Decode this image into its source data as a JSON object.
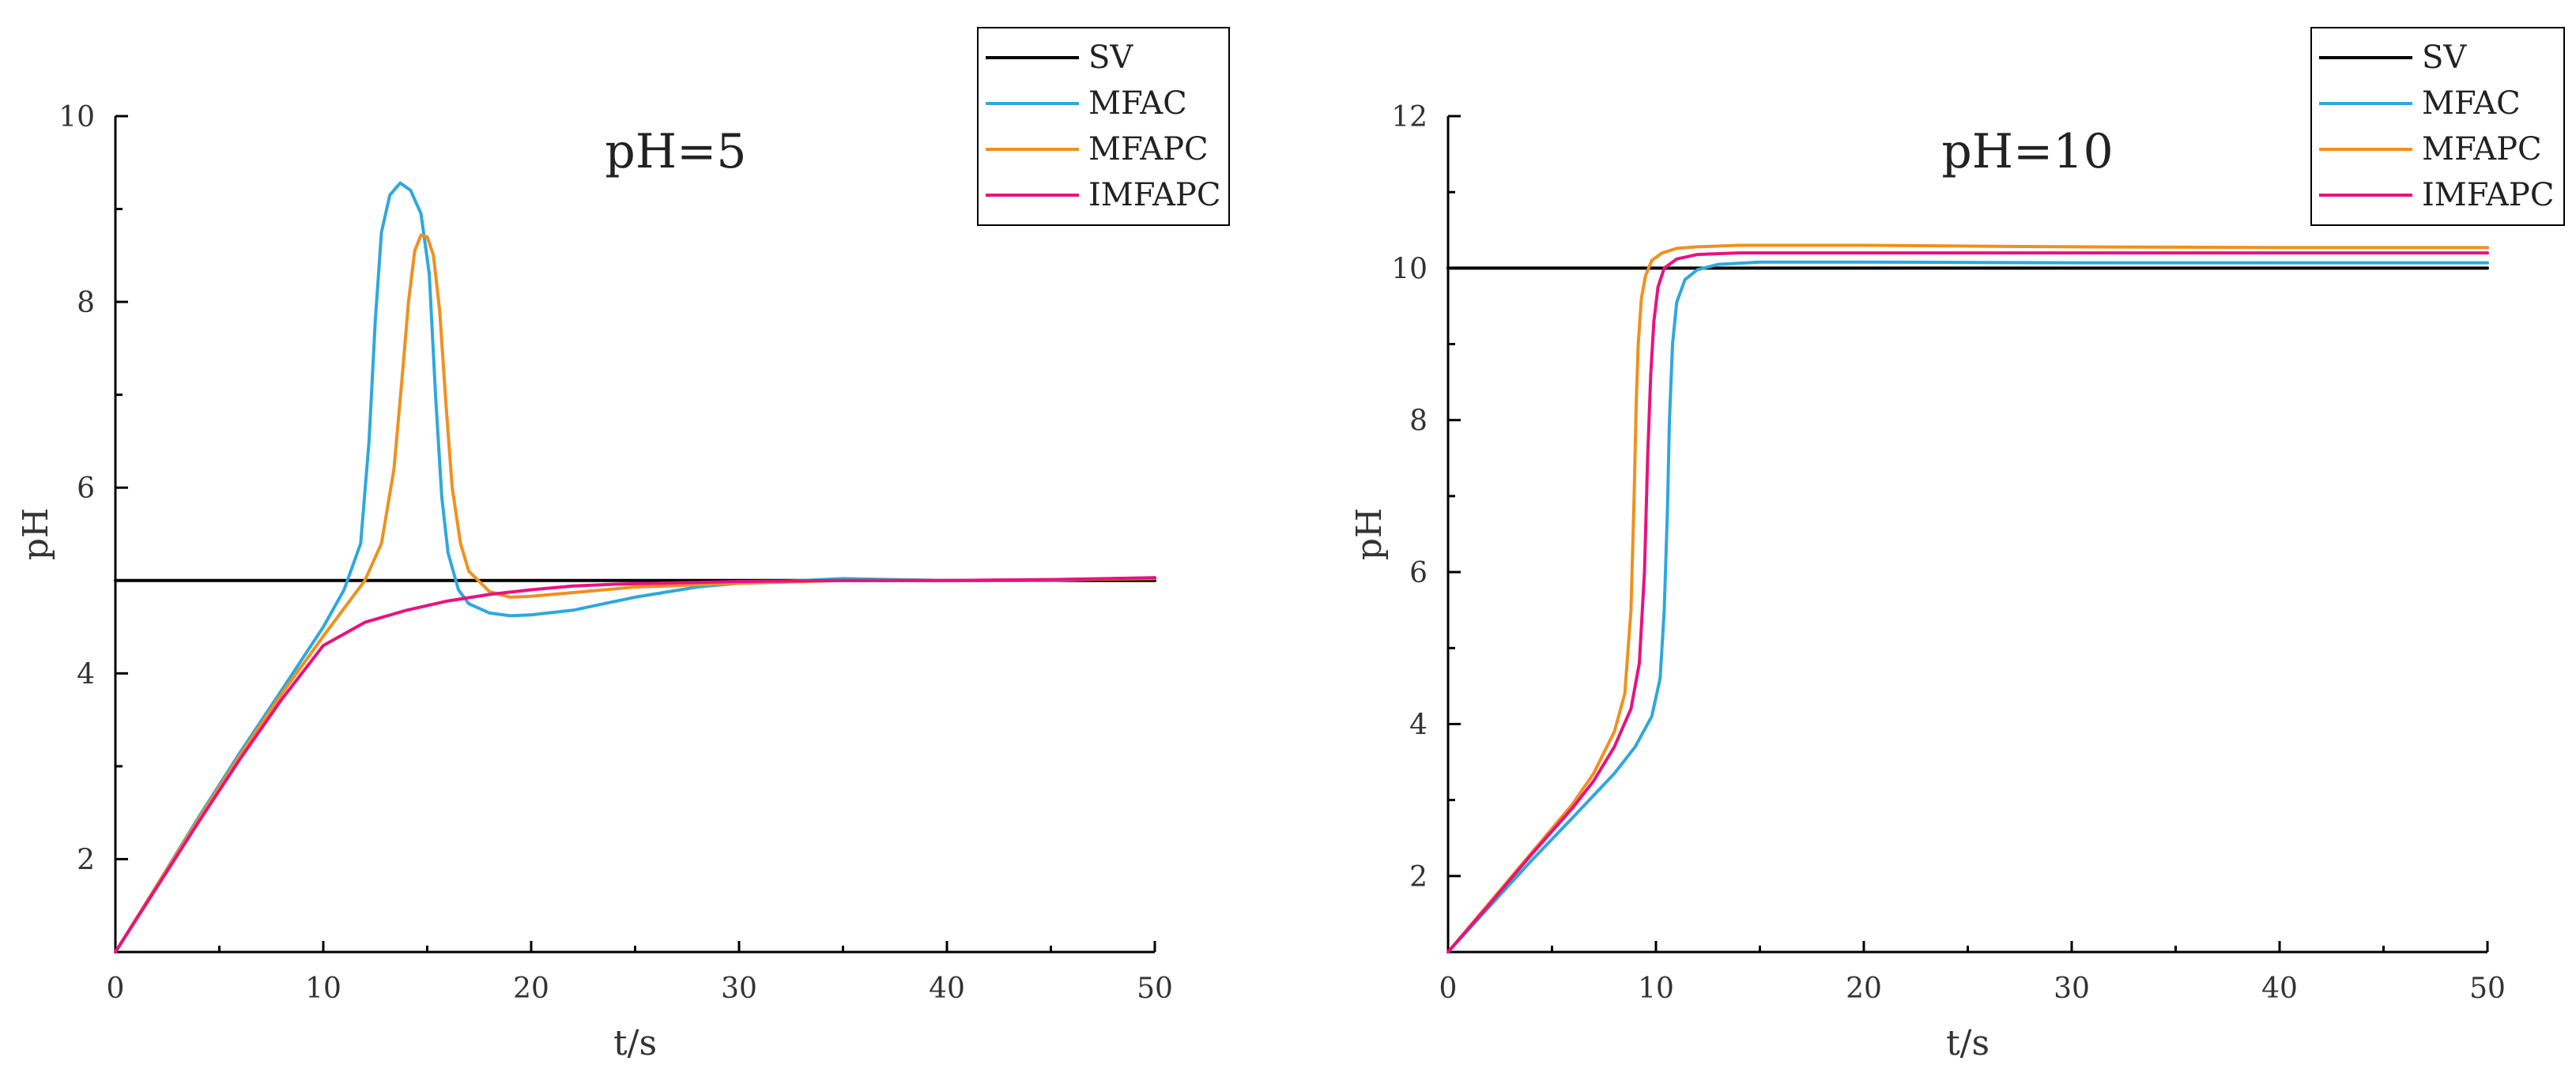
{
  "chart_data": [
    {
      "type": "line",
      "title": "pH=5",
      "xlabel": "t/s",
      "ylabel": "pH",
      "xlim": [
        0,
        50
      ],
      "ylim": [
        1,
        10
      ],
      "xticks": [
        0,
        10,
        20,
        30,
        40,
        50
      ],
      "yticks": [
        2,
        4,
        6,
        8,
        10
      ],
      "grid": false,
      "legend_position": "top-right",
      "series": [
        {
          "name": "SV",
          "color": "#000000",
          "x": [
            0,
            50
          ],
          "y": [
            5,
            5
          ]
        },
        {
          "name": "MFAC",
          "color": "#2ea8dd",
          "x": [
            0,
            2,
            4,
            6,
            8,
            10,
            11,
            11.8,
            12.2,
            12.5,
            12.8,
            13.2,
            13.7,
            14.2,
            14.7,
            15.1,
            15.4,
            15.7,
            16.0,
            16.5,
            17,
            18,
            19,
            20,
            22,
            25,
            28,
            30,
            33,
            35,
            40,
            45,
            48,
            50
          ],
          "y": [
            1,
            1.72,
            2.45,
            3.15,
            3.82,
            4.5,
            4.9,
            5.4,
            6.5,
            7.8,
            8.75,
            9.15,
            9.28,
            9.2,
            8.95,
            8.3,
            7.0,
            5.9,
            5.3,
            4.9,
            4.75,
            4.65,
            4.62,
            4.63,
            4.68,
            4.82,
            4.93,
            4.97,
            5.0,
            5.02,
            5.0,
            5.0,
            5.02,
            5.03
          ]
        },
        {
          "name": "MFAPC",
          "color": "#f0901e",
          "x": [
            0,
            2,
            4,
            6,
            8,
            10,
            11,
            12,
            12.8,
            13.4,
            13.8,
            14.1,
            14.4,
            14.7,
            15.0,
            15.3,
            15.6,
            15.9,
            16.2,
            16.6,
            17,
            18,
            19,
            20,
            22,
            25,
            30,
            35,
            40,
            45,
            50
          ],
          "y": [
            1,
            1.72,
            2.43,
            3.12,
            3.78,
            4.4,
            4.7,
            5.0,
            5.4,
            6.2,
            7.2,
            8.0,
            8.55,
            8.72,
            8.7,
            8.5,
            7.9,
            6.9,
            6.0,
            5.4,
            5.1,
            4.88,
            4.82,
            4.83,
            4.87,
            4.93,
            4.97,
            5.0,
            5.0,
            5.01,
            5.02
          ]
        },
        {
          "name": "IMFAPC",
          "color": "#e8127f",
          "x": [
            0,
            2,
            4,
            6,
            8,
            10,
            12,
            14,
            16,
            18,
            20,
            22,
            24,
            26,
            28,
            30,
            35,
            40,
            45,
            50
          ],
          "y": [
            1,
            1.7,
            2.4,
            3.08,
            3.72,
            4.3,
            4.55,
            4.68,
            4.78,
            4.85,
            4.9,
            4.94,
            4.96,
            4.97,
            4.98,
            4.99,
            5.0,
            5.0,
            5.01,
            5.03
          ]
        }
      ]
    },
    {
      "type": "line",
      "title": "pH=10",
      "xlabel": "t/s",
      "ylabel": "pH",
      "xlim": [
        0,
        50
      ],
      "ylim": [
        1,
        12
      ],
      "xticks": [
        0,
        10,
        20,
        30,
        40,
        50
      ],
      "yticks": [
        2,
        4,
        6,
        8,
        10,
        12
      ],
      "grid": false,
      "legend_position": "top-right",
      "series": [
        {
          "name": "SV",
          "color": "#000000",
          "x": [
            0,
            50
          ],
          "y": [
            10,
            10
          ]
        },
        {
          "name": "MFAC",
          "color": "#2ea8dd",
          "x": [
            0,
            2,
            4,
            6,
            8,
            9,
            9.8,
            10.2,
            10.4,
            10.55,
            10.65,
            10.8,
            11.0,
            11.4,
            12,
            13,
            15,
            20,
            30,
            40,
            50
          ],
          "y": [
            1,
            1.6,
            2.2,
            2.77,
            3.35,
            3.7,
            4.1,
            4.6,
            5.5,
            6.8,
            8.0,
            9.0,
            9.55,
            9.85,
            9.98,
            10.05,
            10.08,
            10.08,
            10.07,
            10.07,
            10.07
          ]
        },
        {
          "name": "MFAPC",
          "color": "#f0901e",
          "x": [
            0,
            2,
            4,
            6,
            7,
            8,
            8.5,
            8.8,
            8.95,
            9.05,
            9.15,
            9.3,
            9.5,
            9.8,
            10.3,
            11,
            12,
            14,
            20,
            30,
            40,
            50
          ],
          "y": [
            1,
            1.65,
            2.3,
            2.95,
            3.35,
            3.9,
            4.4,
            5.5,
            7.0,
            8.2,
            9.0,
            9.6,
            9.9,
            10.1,
            10.2,
            10.26,
            10.28,
            10.3,
            10.3,
            10.28,
            10.27,
            10.27
          ]
        },
        {
          "name": "IMFAPC",
          "color": "#e8127f",
          "x": [
            0,
            2,
            4,
            6,
            7,
            8,
            8.8,
            9.2,
            9.45,
            9.6,
            9.75,
            9.9,
            10.1,
            10.4,
            11,
            12,
            14,
            20,
            30,
            40,
            50
          ],
          "y": [
            1,
            1.63,
            2.28,
            2.9,
            3.25,
            3.7,
            4.2,
            4.8,
            6.0,
            7.5,
            8.6,
            9.3,
            9.75,
            10.0,
            10.12,
            10.18,
            10.2,
            10.2,
            10.2,
            10.2,
            10.2
          ]
        }
      ]
    }
  ]
}
